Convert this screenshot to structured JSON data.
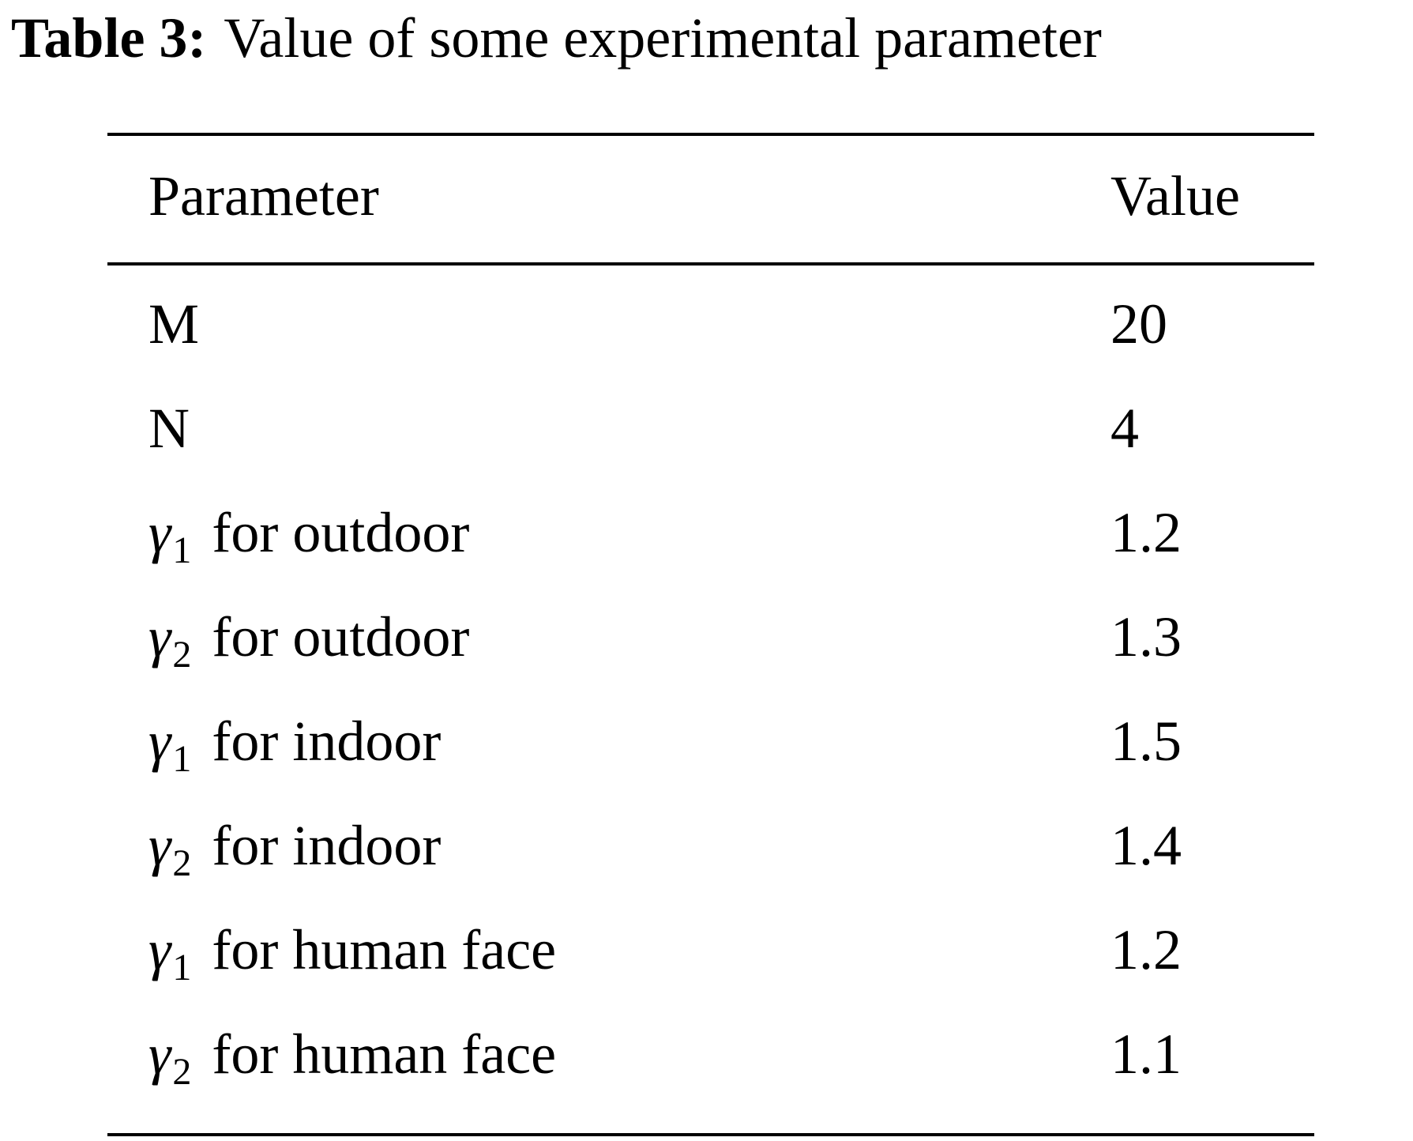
{
  "caption": {
    "label": "Table 3:",
    "text": "Value of some experimental parameter"
  },
  "table": {
    "headers": [
      "Parameter",
      "Value"
    ],
    "rows": [
      {
        "symbol": "",
        "subscript": "",
        "text": "M",
        "value": "20"
      },
      {
        "symbol": "",
        "subscript": "",
        "text": "N",
        "value": "4"
      },
      {
        "symbol": "γ",
        "subscript": "1",
        "text": "for outdoor",
        "value": "1.2"
      },
      {
        "symbol": "γ",
        "subscript": "2",
        "text": "for outdoor",
        "value": "1.3"
      },
      {
        "symbol": "γ",
        "subscript": "1",
        "text": "for indoor",
        "value": "1.5"
      },
      {
        "symbol": "γ",
        "subscript": "2",
        "text": "for indoor",
        "value": "1.4"
      },
      {
        "symbol": "γ",
        "subscript": "1",
        "text": "for human face",
        "value": "1.2"
      },
      {
        "symbol": "γ",
        "subscript": "2",
        "text": "for human face",
        "value": "1.1"
      }
    ]
  }
}
